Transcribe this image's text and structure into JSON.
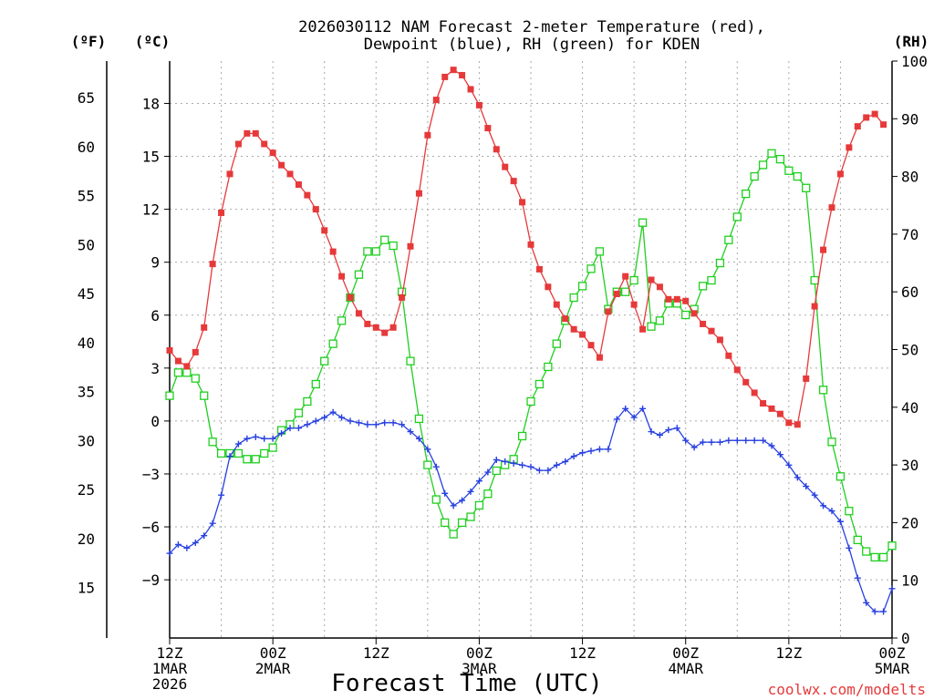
{
  "chart_data": {
    "type": "line",
    "title_line1": "2026030112 NAM Forecast 2-meter Temperature (red),",
    "title_line2": "Dewpoint (blue), RH (green) for KDEN",
    "xlabel": "Forecast Time (UTC)",
    "credit": "coolwx.com/modelts",
    "units": {
      "f": "(ºF)",
      "c": "(ºC)",
      "rh": "(RH)"
    },
    "x_hours_range": [
      0,
      84
    ],
    "y_celsius_range": [
      -12.3,
      20.4
    ],
    "rh_range": [
      0,
      100
    ],
    "ticks_c": [
      {
        "v": 18,
        "label": "18"
      },
      {
        "v": 15,
        "label": "15"
      },
      {
        "v": 12,
        "label": "12"
      },
      {
        "v": 9,
        "label": "9"
      },
      {
        "v": 6,
        "label": "6"
      },
      {
        "v": 3,
        "label": "3"
      },
      {
        "v": 0,
        "label": "0"
      },
      {
        "v": -3,
        "label": "−3"
      },
      {
        "v": -6,
        "label": "−6"
      },
      {
        "v": -9,
        "label": "−9"
      }
    ],
    "ticks_f": [
      {
        "v": 65,
        "label": "65"
      },
      {
        "v": 60,
        "label": "60"
      },
      {
        "v": 55,
        "label": "55"
      },
      {
        "v": 50,
        "label": "50"
      },
      {
        "v": 45,
        "label": "45"
      },
      {
        "v": 40,
        "label": "40"
      },
      {
        "v": 35,
        "label": "35"
      },
      {
        "v": 30,
        "label": "30"
      },
      {
        "v": 25,
        "label": "25"
      },
      {
        "v": 20,
        "label": "20"
      },
      {
        "v": 15,
        "label": "15"
      }
    ],
    "ticks_rh": [
      {
        "v": 100,
        "label": "100"
      },
      {
        "v": 90,
        "label": "90"
      },
      {
        "v": 80,
        "label": "80"
      },
      {
        "v": 70,
        "label": "70"
      },
      {
        "v": 60,
        "label": "60"
      },
      {
        "v": 50,
        "label": "50"
      },
      {
        "v": 40,
        "label": "40"
      },
      {
        "v": 30,
        "label": "30"
      },
      {
        "v": 20,
        "label": "20"
      },
      {
        "v": 10,
        "label": "10"
      },
      {
        "v": 0,
        "label": "0"
      }
    ],
    "x_ticks": [
      {
        "h": 0,
        "lines": [
          "12Z",
          "1MAR",
          "2026"
        ]
      },
      {
        "h": 12,
        "lines": [
          "00Z",
          "2MAR"
        ]
      },
      {
        "h": 24,
        "lines": [
          "12Z"
        ]
      },
      {
        "h": 36,
        "lines": [
          "00Z",
          "3MAR"
        ]
      },
      {
        "h": 48,
        "lines": [
          "12Z"
        ]
      },
      {
        "h": 60,
        "lines": [
          "00Z",
          "4MAR"
        ]
      },
      {
        "h": 72,
        "lines": [
          "12Z"
        ]
      },
      {
        "h": 84,
        "lines": [
          "00Z",
          "5MAR"
        ]
      }
    ],
    "colors": {
      "temperature": "#e6393a",
      "dewpoint": "#2840e0",
      "rh": "#1fcf1f"
    },
    "series": [
      {
        "name": "Temperature (°C)",
        "marker": "filled-square",
        "points": [
          [
            0,
            4.0
          ],
          [
            1,
            3.4
          ],
          [
            2,
            3.1
          ],
          [
            3,
            3.9
          ],
          [
            4,
            5.3
          ],
          [
            5,
            8.9
          ],
          [
            6,
            11.8
          ],
          [
            7,
            14.0
          ],
          [
            8,
            15.7
          ],
          [
            9,
            16.3
          ],
          [
            10,
            16.3
          ],
          [
            11,
            15.7
          ],
          [
            12,
            15.2
          ],
          [
            13,
            14.5
          ],
          [
            14,
            14.0
          ],
          [
            15,
            13.4
          ],
          [
            16,
            12.8
          ],
          [
            17,
            12.0
          ],
          [
            18,
            10.8
          ],
          [
            19,
            9.6
          ],
          [
            20,
            8.2
          ],
          [
            21,
            7.0
          ],
          [
            22,
            6.1
          ],
          [
            23,
            5.5
          ],
          [
            24,
            5.3
          ],
          [
            25,
            5.0
          ],
          [
            26,
            5.3
          ],
          [
            27,
            7.0
          ],
          [
            28,
            9.9
          ],
          [
            29,
            12.9
          ],
          [
            30,
            16.2
          ],
          [
            31,
            18.2
          ],
          [
            32,
            19.5
          ],
          [
            33,
            19.9
          ],
          [
            34,
            19.6
          ],
          [
            35,
            18.8
          ],
          [
            36,
            17.9
          ],
          [
            37,
            16.6
          ],
          [
            38,
            15.4
          ],
          [
            39,
            14.4
          ],
          [
            40,
            13.6
          ],
          [
            41,
            12.4
          ],
          [
            42,
            10.0
          ],
          [
            43,
            8.6
          ],
          [
            44,
            7.6
          ],
          [
            45,
            6.6
          ],
          [
            46,
            5.8
          ],
          [
            47,
            5.2
          ],
          [
            48,
            4.9
          ],
          [
            49,
            4.3
          ],
          [
            50,
            3.6
          ],
          [
            51,
            6.2
          ],
          [
            52,
            7.2
          ],
          [
            53,
            8.2
          ],
          [
            54,
            6.6
          ],
          [
            55,
            5.2
          ],
          [
            56,
            8.0
          ],
          [
            57,
            7.6
          ],
          [
            58,
            6.9
          ],
          [
            59,
            6.9
          ],
          [
            60,
            6.8
          ],
          [
            61,
            6.1
          ],
          [
            62,
            5.5
          ],
          [
            63,
            5.1
          ],
          [
            64,
            4.6
          ],
          [
            65,
            3.7
          ],
          [
            66,
            2.9
          ],
          [
            67,
            2.2
          ],
          [
            68,
            1.6
          ],
          [
            69,
            1.0
          ],
          [
            70,
            0.7
          ],
          [
            71,
            0.4
          ],
          [
            72,
            -0.1
          ],
          [
            73,
            -0.2
          ],
          [
            74,
            2.4
          ],
          [
            75,
            6.5
          ],
          [
            76,
            9.7
          ],
          [
            77,
            12.1
          ],
          [
            78,
            14.0
          ],
          [
            79,
            15.5
          ],
          [
            80,
            16.7
          ],
          [
            81,
            17.2
          ],
          [
            82,
            17.4
          ],
          [
            83,
            16.8
          ]
        ]
      },
      {
        "name": "Dewpoint (°C)",
        "marker": "plus",
        "points": [
          [
            0,
            -7.5
          ],
          [
            1,
            -7.0
          ],
          [
            2,
            -7.2
          ],
          [
            3,
            -6.9
          ],
          [
            4,
            -6.5
          ],
          [
            5,
            -5.8
          ],
          [
            6,
            -4.2
          ],
          [
            7,
            -2.0
          ],
          [
            8,
            -1.3
          ],
          [
            9,
            -1.0
          ],
          [
            10,
            -0.9
          ],
          [
            11,
            -1.0
          ],
          [
            12,
            -1.0
          ],
          [
            13,
            -0.7
          ],
          [
            14,
            -0.4
          ],
          [
            15,
            -0.4
          ],
          [
            16,
            -0.2
          ],
          [
            17,
            0.0
          ],
          [
            18,
            0.2
          ],
          [
            19,
            0.5
          ],
          [
            20,
            0.2
          ],
          [
            21,
            0.0
          ],
          [
            22,
            -0.1
          ],
          [
            23,
            -0.2
          ],
          [
            24,
            -0.2
          ],
          [
            25,
            -0.1
          ],
          [
            26,
            -0.1
          ],
          [
            27,
            -0.2
          ],
          [
            28,
            -0.6
          ],
          [
            29,
            -1.0
          ],
          [
            30,
            -1.6
          ],
          [
            31,
            -2.6
          ],
          [
            32,
            -4.1
          ],
          [
            33,
            -4.8
          ],
          [
            34,
            -4.5
          ],
          [
            35,
            -4.0
          ],
          [
            36,
            -3.4
          ],
          [
            37,
            -2.9
          ],
          [
            38,
            -2.2
          ],
          [
            39,
            -2.3
          ],
          [
            40,
            -2.4
          ],
          [
            41,
            -2.5
          ],
          [
            42,
            -2.6
          ],
          [
            43,
            -2.8
          ],
          [
            44,
            -2.8
          ],
          [
            45,
            -2.5
          ],
          [
            46,
            -2.3
          ],
          [
            47,
            -2.0
          ],
          [
            48,
            -1.8
          ],
          [
            49,
            -1.7
          ],
          [
            50,
            -1.6
          ],
          [
            51,
            -1.6
          ],
          [
            52,
            0.1
          ],
          [
            53,
            0.7
          ],
          [
            54,
            0.2
          ],
          [
            55,
            0.7
          ],
          [
            56,
            -0.6
          ],
          [
            57,
            -0.8
          ],
          [
            58,
            -0.5
          ],
          [
            59,
            -0.4
          ],
          [
            60,
            -1.1
          ],
          [
            61,
            -1.5
          ],
          [
            62,
            -1.2
          ],
          [
            63,
            -1.2
          ],
          [
            64,
            -1.2
          ],
          [
            65,
            -1.1
          ],
          [
            66,
            -1.1
          ],
          [
            67,
            -1.1
          ],
          [
            68,
            -1.1
          ],
          [
            69,
            -1.1
          ],
          [
            70,
            -1.4
          ],
          [
            71,
            -1.9
          ],
          [
            72,
            -2.5
          ],
          [
            73,
            -3.2
          ],
          [
            74,
            -3.7
          ],
          [
            75,
            -4.2
          ],
          [
            76,
            -4.8
          ],
          [
            77,
            -5.1
          ],
          [
            78,
            -5.7
          ],
          [
            79,
            -7.2
          ],
          [
            80,
            -8.9
          ],
          [
            81,
            -10.3
          ],
          [
            82,
            -10.8
          ],
          [
            83,
            -10.8
          ],
          [
            84,
            -9.5
          ]
        ]
      },
      {
        "name": "RH (%)",
        "marker": "open-square",
        "points": [
          [
            0,
            42
          ],
          [
            1,
            46
          ],
          [
            2,
            46
          ],
          [
            3,
            45
          ],
          [
            4,
            42
          ],
          [
            5,
            34
          ],
          [
            6,
            32
          ],
          [
            7,
            32
          ],
          [
            8,
            32
          ],
          [
            9,
            31
          ],
          [
            10,
            31
          ],
          [
            11,
            32
          ],
          [
            12,
            33
          ],
          [
            13,
            36
          ],
          [
            14,
            37
          ],
          [
            15,
            39
          ],
          [
            16,
            41
          ],
          [
            17,
            44
          ],
          [
            18,
            48
          ],
          [
            19,
            51
          ],
          [
            20,
            55
          ],
          [
            21,
            59
          ],
          [
            22,
            63
          ],
          [
            23,
            67
          ],
          [
            24,
            67
          ],
          [
            25,
            69
          ],
          [
            26,
            68
          ],
          [
            27,
            60
          ],
          [
            28,
            48
          ],
          [
            29,
            38
          ],
          [
            30,
            30
          ],
          [
            31,
            24
          ],
          [
            32,
            20
          ],
          [
            33,
            18
          ],
          [
            34,
            20
          ],
          [
            35,
            21
          ],
          [
            36,
            23
          ],
          [
            37,
            25
          ],
          [
            38,
            29
          ],
          [
            39,
            30
          ],
          [
            40,
            31
          ],
          [
            41,
            35
          ],
          [
            42,
            41
          ],
          [
            43,
            44
          ],
          [
            44,
            47
          ],
          [
            45,
            51
          ],
          [
            46,
            55
          ],
          [
            47,
            59
          ],
          [
            48,
            61
          ],
          [
            49,
            64
          ],
          [
            50,
            67
          ],
          [
            51,
            57
          ],
          [
            52,
            60
          ],
          [
            53,
            60
          ],
          [
            54,
            62
          ],
          [
            55,
            72
          ],
          [
            56,
            54
          ],
          [
            57,
            55
          ],
          [
            58,
            58
          ],
          [
            59,
            58
          ],
          [
            60,
            56
          ],
          [
            61,
            57
          ],
          [
            62,
            61
          ],
          [
            63,
            62
          ],
          [
            64,
            65
          ],
          [
            65,
            69
          ],
          [
            66,
            73
          ],
          [
            67,
            77
          ],
          [
            68,
            80
          ],
          [
            69,
            82
          ],
          [
            70,
            84
          ],
          [
            71,
            83
          ],
          [
            72,
            81
          ],
          [
            73,
            80
          ],
          [
            74,
            78
          ],
          [
            75,
            62
          ],
          [
            76,
            43
          ],
          [
            77,
            34
          ],
          [
            78,
            28
          ],
          [
            79,
            22
          ],
          [
            80,
            17
          ],
          [
            81,
            15
          ],
          [
            82,
            14
          ],
          [
            83,
            14
          ],
          [
            84,
            16
          ]
        ]
      }
    ]
  }
}
